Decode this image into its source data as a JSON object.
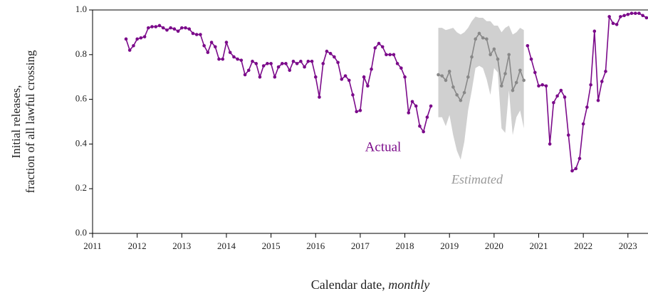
{
  "chart_data": {
    "type": "line",
    "y_label": [
      "Initial releases,",
      "fraction of all lawful crossing"
    ],
    "x_label": "Calendar date,",
    "x_label_emphasis": "monthly",
    "xlim": [
      2011,
      2023.45
    ],
    "xticks": [
      2011,
      2012,
      2013,
      2014,
      2015,
      2016,
      2017,
      2018,
      2019,
      2020,
      2021,
      2022,
      2023
    ],
    "ylim": [
      0,
      1
    ],
    "yticks": [
      {
        "value": 0,
        "label": "0.0"
      },
      {
        "value": 0.2,
        "label": "0.2"
      },
      {
        "value": 0.4,
        "label": "0.4"
      },
      {
        "value": 0.6,
        "label": "0.6"
      },
      {
        "value": 0.8,
        "label": "0.8"
      },
      {
        "value": 1,
        "label": "1.0"
      }
    ],
    "series": [
      {
        "name": "Actual",
        "color": "#7b0a8a",
        "x": [
          2011.75,
          2011.833,
          2011.917,
          2012,
          2012.083,
          2012.167,
          2012.25,
          2012.333,
          2012.417,
          2012.5,
          2012.583,
          2012.667,
          2012.75,
          2012.833,
          2012.917,
          2013,
          2013.083,
          2013.167,
          2013.25,
          2013.333,
          2013.417,
          2013.5,
          2013.583,
          2013.667,
          2013.75,
          2013.833,
          2013.917,
          2014,
          2014.083,
          2014.167,
          2014.25,
          2014.333,
          2014.417,
          2014.5,
          2014.583,
          2014.667,
          2014.75,
          2014.833,
          2014.917,
          2015,
          2015.083,
          2015.167,
          2015.25,
          2015.333,
          2015.417,
          2015.5,
          2015.583,
          2015.667,
          2015.75,
          2015.833,
          2015.917,
          2016,
          2016.083,
          2016.167,
          2016.25,
          2016.333,
          2016.417,
          2016.5,
          2016.583,
          2016.667,
          2016.75,
          2016.833,
          2016.917,
          2017,
          2017.083,
          2017.167,
          2017.25,
          2017.333,
          2017.417,
          2017.5,
          2017.583,
          2017.667,
          2017.75,
          2017.833,
          2017.917,
          2018,
          2018.083,
          2018.167,
          2018.25,
          2018.333,
          2018.417,
          2018.5,
          2018.583,
          2018.667,
          2020.75,
          2020.833,
          2020.917,
          2021,
          2021.083,
          2021.167,
          2021.25,
          2021.333,
          2021.417,
          2021.5,
          2021.583,
          2021.667,
          2021.75,
          2021.833,
          2021.917,
          2022,
          2022.083,
          2022.167,
          2022.25,
          2022.333,
          2022.417,
          2022.5,
          2022.583,
          2022.667,
          2022.75,
          2022.833,
          2022.917,
          2023,
          2023.083,
          2023.167,
          2023.25,
          2023.333,
          2023.417
        ],
        "values": [
          0.87,
          0.82,
          0.84,
          0.87,
          0.875,
          0.88,
          0.92,
          0.925,
          0.925,
          0.93,
          0.92,
          0.91,
          0.92,
          0.915,
          0.905,
          0.92,
          0.92,
          0.915,
          0.895,
          0.89,
          0.89,
          0.84,
          0.81,
          0.855,
          0.835,
          0.78,
          0.78,
          0.855,
          0.81,
          0.79,
          0.78,
          0.775,
          0.71,
          0.73,
          0.77,
          0.76,
          0.7,
          0.75,
          0.76,
          0.76,
          0.7,
          0.745,
          0.76,
          0.76,
          0.73,
          0.77,
          0.76,
          0.77,
          0.745,
          0.77,
          0.77,
          0.7,
          0.61,
          0.76,
          0.815,
          0.805,
          0.79,
          0.765,
          0.69,
          0.705,
          0.685,
          0.62,
          0.545,
          0.55,
          0.7,
          0.66,
          0.735,
          0.83,
          0.85,
          0.835,
          0.8,
          0.8,
          0.8,
          0.76,
          0.74,
          0.7,
          0.54,
          0.59,
          0.57,
          0.48,
          0.455,
          0.52,
          0.57,
          null,
          0.84,
          0.78,
          0.72,
          0.66,
          0.665,
          0.66,
          0.4,
          0.585,
          0.615,
          0.64,
          0.61,
          0.44,
          0.28,
          0.29,
          0.335,
          0.49,
          0.565,
          0.665,
          0.905,
          0.595,
          0.68,
          0.725,
          0.97,
          0.94,
          0.935,
          0.97,
          0.975,
          0.98,
          0.985,
          0.985,
          0.985,
          0.975,
          0.965
        ]
      },
      {
        "name": "Estimated",
        "color": "#888888",
        "band_color": "#d0d0d0",
        "x": [
          2018.75,
          2018.833,
          2018.917,
          2019,
          2019.083,
          2019.167,
          2019.25,
          2019.333,
          2019.417,
          2019.5,
          2019.583,
          2019.667,
          2019.75,
          2019.833,
          2019.917,
          2020,
          2020.083,
          2020.167,
          2020.25,
          2020.333,
          2020.417,
          2020.5,
          2020.583,
          2020.667
        ],
        "values": [
          0.71,
          0.705,
          0.685,
          0.725,
          0.655,
          0.62,
          0.595,
          0.63,
          0.7,
          0.79,
          0.87,
          0.895,
          0.875,
          0.87,
          0.8,
          0.825,
          0.78,
          0.66,
          0.715,
          0.8,
          0.64,
          0.675,
          0.73,
          0.685
        ],
        "upper": [
          0.92,
          0.92,
          0.91,
          0.915,
          0.92,
          0.9,
          0.89,
          0.9,
          0.92,
          0.95,
          0.97,
          0.965,
          0.965,
          0.95,
          0.95,
          0.93,
          0.93,
          0.9,
          0.92,
          0.93,
          0.89,
          0.9,
          0.92,
          0.91
        ],
        "lower": [
          0.52,
          0.52,
          0.48,
          0.53,
          0.44,
          0.37,
          0.33,
          0.41,
          0.55,
          0.64,
          0.74,
          0.75,
          0.74,
          0.69,
          0.62,
          0.74,
          0.72,
          0.47,
          0.45,
          0.64,
          0.44,
          0.52,
          0.55,
          0.47
        ]
      }
    ]
  }
}
